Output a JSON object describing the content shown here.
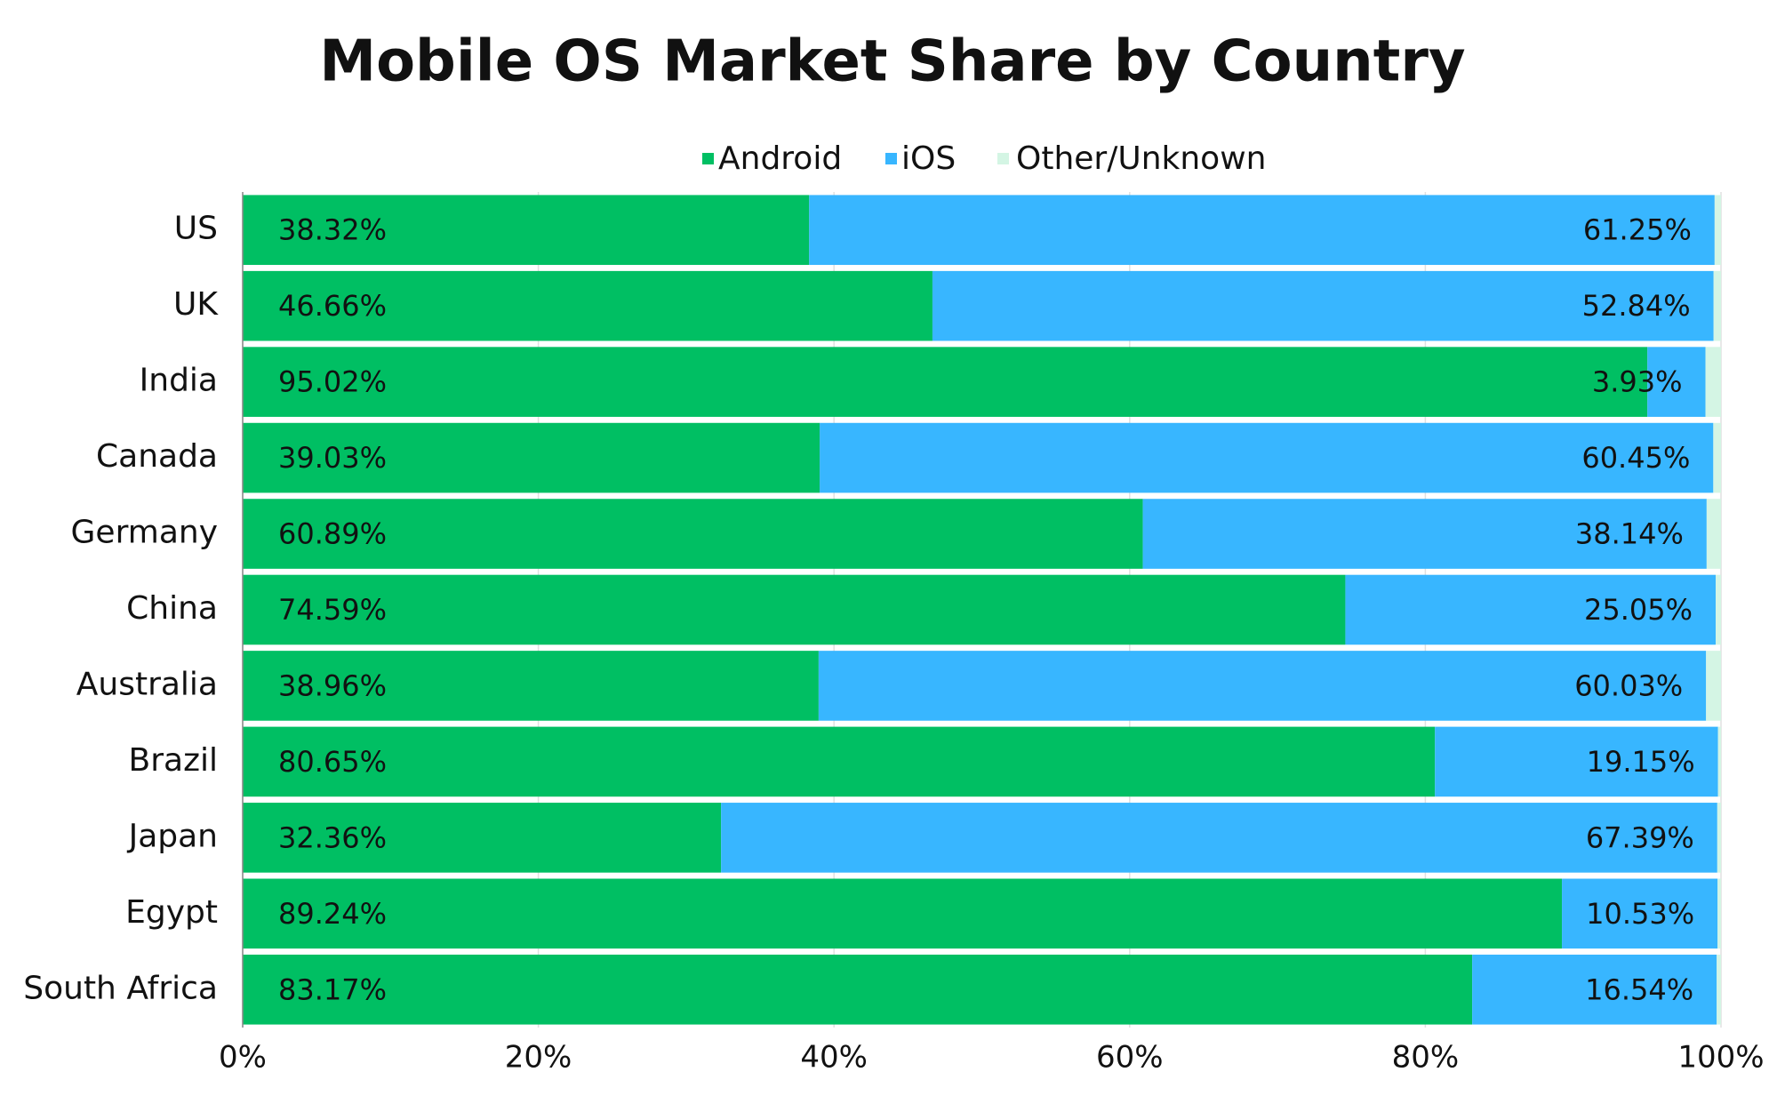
{
  "chart_data": {
    "type": "stacked-bar-horizontal",
    "title": "Mobile OS Market Share by Country",
    "categories": [
      "US",
      "UK",
      "India",
      "Canada",
      "Germany",
      "China",
      "Australia",
      "Brazil",
      "Japan",
      "Egypt",
      "South Africa"
    ],
    "series": [
      {
        "name": "Android",
        "color": "#00bf63",
        "values": [
          38.32,
          46.66,
          95.02,
          39.03,
          60.89,
          74.59,
          38.96,
          80.65,
          32.36,
          89.24,
          83.17
        ],
        "value_labels": [
          "38.32%",
          "46.66%",
          "95.02%",
          "39.03%",
          "60.89%",
          "74.59%",
          "38.96%",
          "80.65%",
          "32.36%",
          "89.24%",
          "83.17%"
        ]
      },
      {
        "name": "iOS",
        "color": "#38b6ff",
        "values": [
          61.25,
          52.84,
          3.93,
          60.45,
          38.14,
          25.05,
          60.03,
          19.15,
          67.39,
          10.53,
          16.54
        ],
        "value_labels": [
          "61.25%",
          "52.84%",
          "3.93%",
          "60.45%",
          "38.14%",
          "25.05%",
          "60.03%",
          "19.15%",
          "67.39%",
          "10.53%",
          "16.54%"
        ]
      },
      {
        "name": "Other/Unknown",
        "color": "#d4f5e4",
        "values": [
          0.43,
          0.5,
          1.05,
          0.52,
          0.97,
          0.36,
          1.01,
          0.2,
          0.25,
          0.23,
          0.29
        ]
      }
    ],
    "xlim": [
      0,
      100
    ],
    "xticks": [
      {
        "value": 0,
        "label": "0%"
      },
      {
        "value": 20,
        "label": "20%"
      },
      {
        "value": 40,
        "label": "40%"
      },
      {
        "value": 60,
        "label": "60%"
      },
      {
        "value": 80,
        "label": "80%"
      },
      {
        "value": 100,
        "label": "100%"
      }
    ],
    "grid": true,
    "legend": "top"
  }
}
